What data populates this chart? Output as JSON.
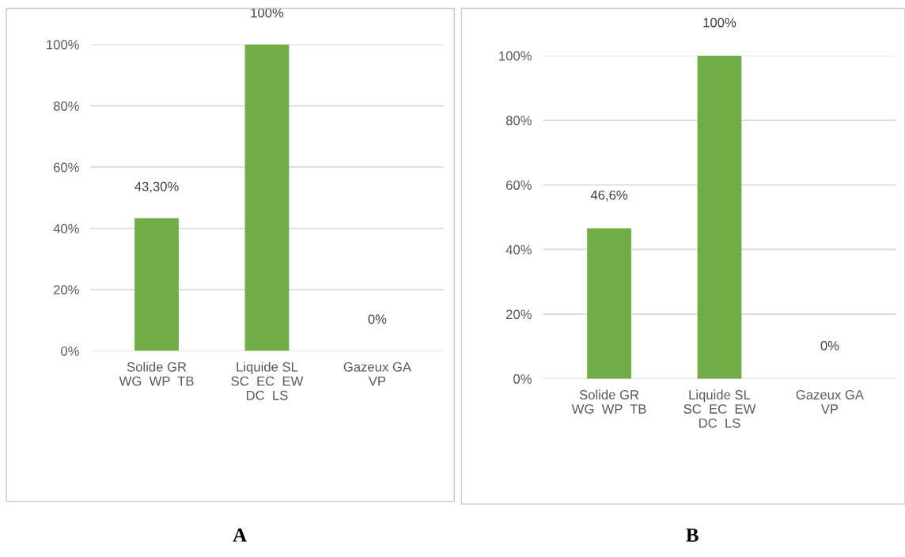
{
  "chart_data": [
    {
      "type": "bar",
      "categories": [
        "Solide GR\nWG  WP  TB",
        "Liquide SL\nSC  EC  EW\nDC  LS",
        "Gazeux GA\nVP"
      ],
      "values": [
        43.3,
        100,
        0
      ],
      "value_labels": [
        "43,30%",
        "100%",
        "0%"
      ],
      "color": "#70ad47",
      "ylim": [
        0,
        100
      ],
      "yticks": [
        {
          "value": 0,
          "label": "0%"
        },
        {
          "value": 20,
          "label": "20%"
        },
        {
          "value": 40,
          "label": "40%"
        },
        {
          "value": 60,
          "label": "60%"
        },
        {
          "value": 80,
          "label": "80%"
        },
        {
          "value": 100,
          "label": "100%"
        }
      ],
      "grid": "y",
      "annotations": [
        "A"
      ]
    },
    {
      "type": "bar",
      "categories": [
        "Solide GR\nWG  WP  TB",
        "Liquide SL\nSC  EC  EW\nDC  LS",
        "Gazeux GA\nVP"
      ],
      "values": [
        46.6,
        100,
        0
      ],
      "value_labels": [
        "46,6%",
        "100%",
        "0%"
      ],
      "color": "#70ad47",
      "ylim": [
        0,
        100
      ],
      "yticks": [
        {
          "value": 0,
          "label": "0%"
        },
        {
          "value": 20,
          "label": "20%"
        },
        {
          "value": 40,
          "label": "40%"
        },
        {
          "value": 60,
          "label": "60%"
        },
        {
          "value": 80,
          "label": "80%"
        },
        {
          "value": 100,
          "label": "100%"
        }
      ],
      "grid": "y",
      "annotations": [
        "B"
      ]
    }
  ]
}
